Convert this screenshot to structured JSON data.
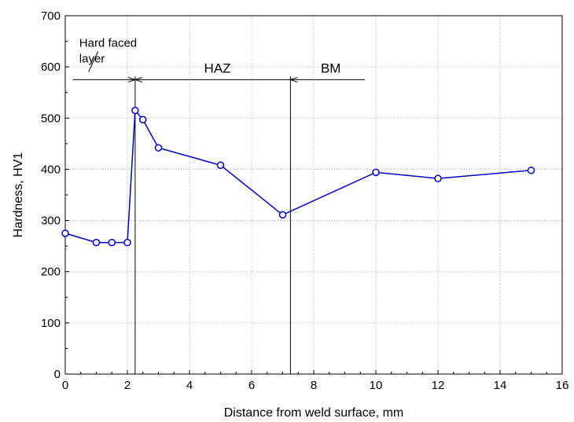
{
  "chart_data": {
    "type": "line",
    "title": "",
    "xlabel": "Distance from weld surface, mm",
    "ylabel": "Hardness, HV1",
    "xlim": [
      0,
      16
    ],
    "ylim": [
      0,
      700
    ],
    "xticks": [
      0,
      2,
      4,
      6,
      8,
      10,
      12,
      14,
      16
    ],
    "yticks": [
      0,
      100,
      200,
      300,
      400,
      500,
      600,
      700
    ],
    "x_minor_step": 0.5,
    "y_minor_step": 50,
    "grid": true,
    "legend": "none",
    "series": [
      {
        "color": "#0000cc",
        "marker": "open-circle",
        "x": [
          0,
          1,
          1.5,
          2,
          2.25,
          2.5,
          3,
          5,
          7,
          10,
          12,
          15
        ],
        "y": [
          275,
          257,
          257,
          257,
          515,
          497,
          442,
          408,
          311,
          394,
          382,
          398
        ]
      }
    ],
    "zones": {
      "boundaries_x": [
        2.25,
        7.25
      ],
      "arrow_level_y": 575,
      "hard_faced": {
        "label_line1": "Hard faced",
        "label_line2": "layer",
        "arrow_from_x": 0.25,
        "arrow_to_x": 2.25
      },
      "haz": {
        "label": "HAZ",
        "arrow_from_x": 7.25,
        "arrow_to_x": 2.25
      },
      "bm": {
        "label": "BM",
        "arrow_from_x": 9.65,
        "arrow_to_x": 7.25
      }
    }
  }
}
